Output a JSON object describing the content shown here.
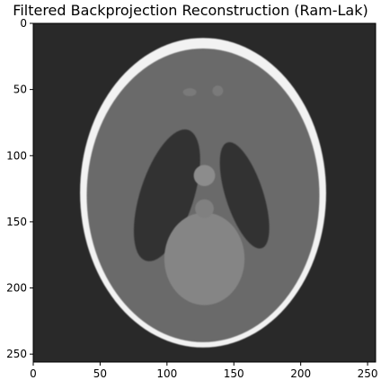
{
  "chart_data": {
    "type": "heatmap",
    "title": "Filtered Backprojection Reconstruction (Ram-Lak)",
    "xlabel": "",
    "ylabel": "",
    "colormap": "gray",
    "image_size": [
      256,
      256
    ],
    "xlim": [
      0,
      256
    ],
    "ylim": [
      256,
      0
    ],
    "x_ticks": [
      0,
      50,
      100,
      150,
      200,
      250
    ],
    "y_ticks": [
      0,
      50,
      100,
      150,
      200,
      250
    ],
    "x_tick_labels": [
      "0",
      "50",
      "100",
      "150",
      "200",
      "250"
    ],
    "y_tick_labels": [
      "0",
      "50",
      "100",
      "150",
      "200",
      "250"
    ],
    "grid": false,
    "background_intensity": 0.16,
    "regions": [
      {
        "label": "outer skull ellipse",
        "cx": 127,
        "cy": 128,
        "rx": 92,
        "ry": 117,
        "angle": 0,
        "intensity": 0.95
      },
      {
        "label": "brain tissue",
        "cx": 127,
        "cy": 130,
        "rx": 87,
        "ry": 111,
        "angle": 0,
        "intensity": 0.42
      },
      {
        "label": "left ventricle",
        "cx": 100,
        "cy": 130,
        "rx": 20,
        "ry": 52,
        "angle": 18,
        "intensity": 0.2
      },
      {
        "label": "right ventricle",
        "cx": 158,
        "cy": 130,
        "rx": 14,
        "ry": 42,
        "angle": -18,
        "intensity": 0.2
      },
      {
        "label": "lower central ellipse",
        "cx": 128,
        "cy": 178,
        "rx": 30,
        "ry": 35,
        "angle": 0,
        "intensity": 0.52
      },
      {
        "label": "upper small blob",
        "cx": 128,
        "cy": 115,
        "rx": 8,
        "ry": 8,
        "angle": 0,
        "intensity": 0.55
      },
      {
        "label": "center small blob",
        "cx": 128,
        "cy": 140,
        "rx": 7,
        "ry": 7,
        "angle": 0,
        "intensity": 0.5
      },
      {
        "label": "top spot left",
        "cx": 117,
        "cy": 52,
        "rx": 5,
        "ry": 3,
        "angle": 0,
        "intensity": 0.48
      },
      {
        "label": "top spot right",
        "cx": 138,
        "cy": 51,
        "rx": 4,
        "ry": 4,
        "angle": 0,
        "intensity": 0.48
      }
    ]
  }
}
